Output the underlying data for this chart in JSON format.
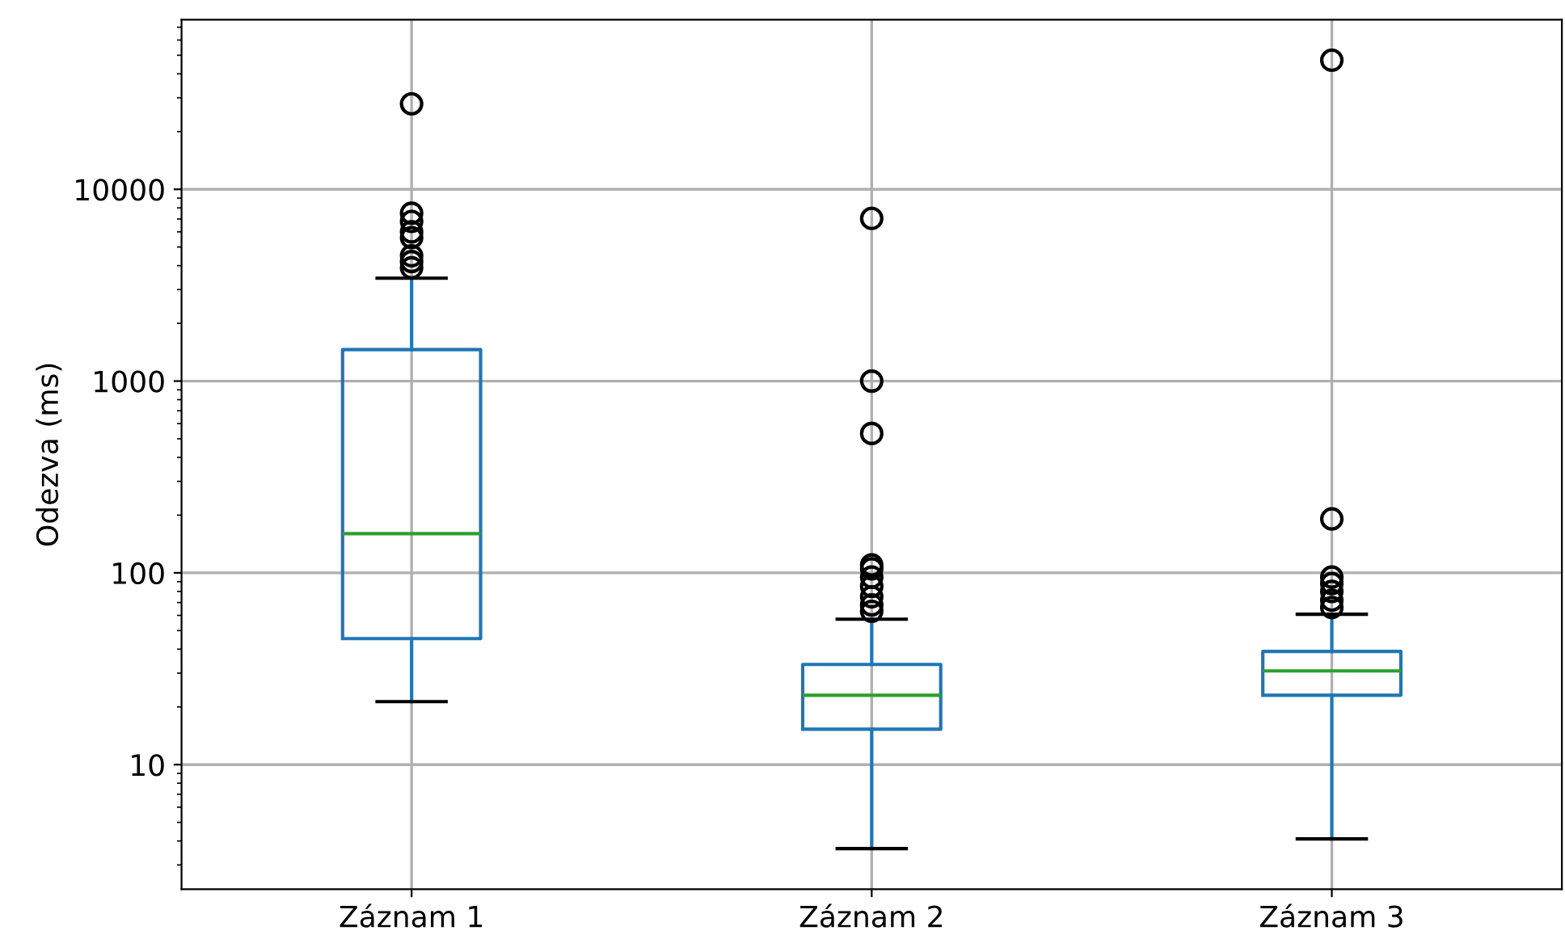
{
  "chart_data": {
    "type": "box",
    "ylabel": "Odezva (ms)",
    "categories": [
      "Záznam 1",
      "Záznam 2",
      "Záznam 3"
    ],
    "boxes": [
      {
        "low": 21.3,
        "q1": 45.4,
        "median": 160,
        "q3": 1460,
        "high": 3440,
        "outliers": [
          27900,
          7500,
          6800,
          6000,
          5600,
          4500,
          4200,
          3900
        ]
      },
      {
        "low": 3.65,
        "q1": 15.3,
        "median": 23,
        "q3": 33.3,
        "high": 57.3,
        "outliers": [
          7050,
          1000,
          533,
          110,
          105,
          95,
          85,
          75,
          68,
          63
        ]
      },
      {
        "low": 4.1,
        "q1": 23,
        "median": 30.8,
        "q3": 38.9,
        "high": 60.8,
        "outliers": [
          47100,
          191,
          95,
          88,
          80,
          72,
          66
        ]
      }
    ],
    "color": "#1f77b4",
    "log": "y",
    "ylim": [
      2.24,
      76600
    ],
    "yticks": [
      10,
      100,
      1000,
      10000
    ],
    "grid": true
  }
}
